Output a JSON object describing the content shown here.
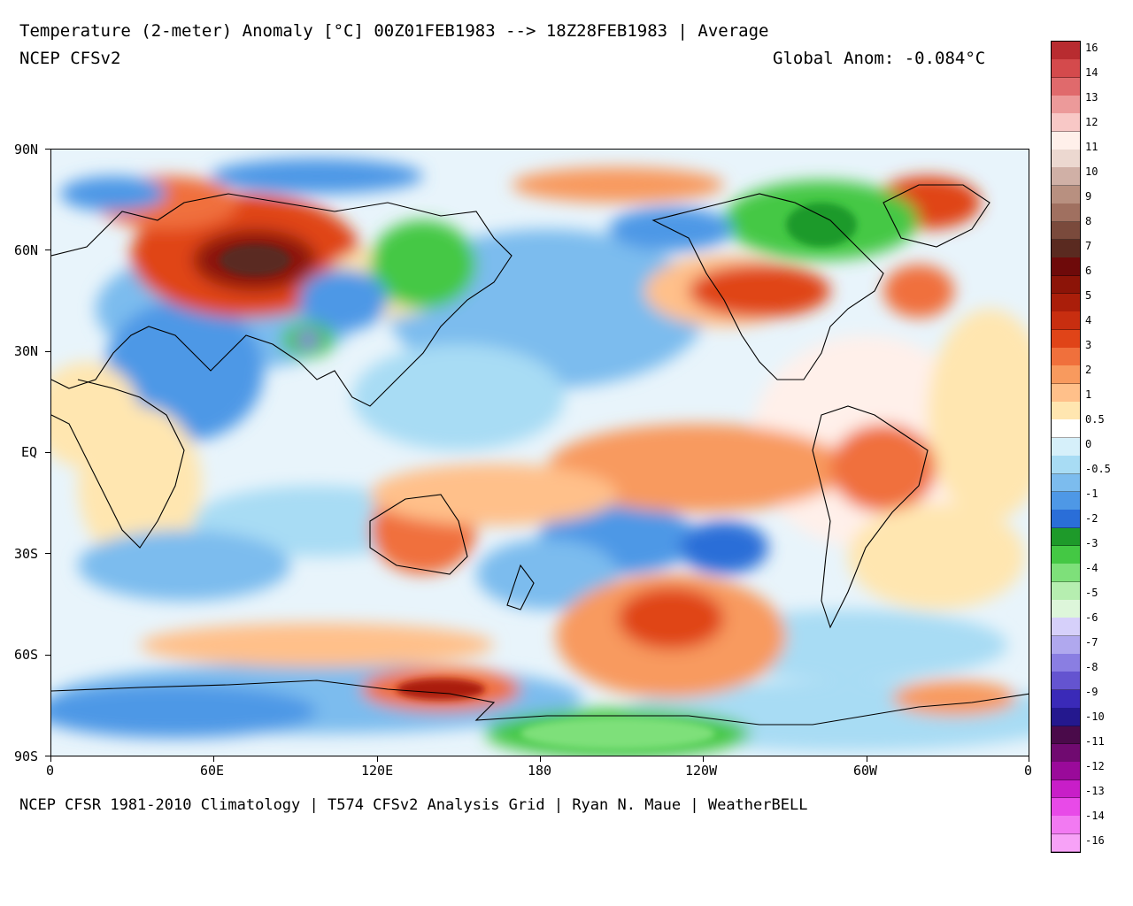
{
  "header": {
    "title": "Temperature (2-meter) Anomaly  [°C] 00Z01FEB1983 --> 18Z28FEB1983 | Average",
    "model": "NCEP CFSv2",
    "global_anom": "Global Anom: -0.084°C"
  },
  "footer": {
    "credit": "NCEP CFSR 1981-2010 Climatology | T574 CFSv2 Analysis Grid | Ryan N. Maue | WeatherBELL"
  },
  "map": {
    "lat_labels": [
      "90N",
      "60N",
      "30N",
      "EQ",
      "30S",
      "60S",
      "90S"
    ],
    "lon_labels": [
      "0",
      "60E",
      "120E",
      "180",
      "120W",
      "60W",
      "0"
    ]
  },
  "legend": {
    "labels": [
      "16",
      "14",
      "13",
      "12",
      "11",
      "10",
      "9",
      "8",
      "7",
      "6",
      "5",
      "4",
      "3",
      "2",
      "1",
      "0.5",
      "0",
      "-0.5",
      "-1",
      "-2",
      "-3",
      "-4",
      "-5",
      "-6",
      "-7",
      "-8",
      "-9",
      "-10",
      "-11",
      "-12",
      "-13",
      "-14",
      "-16"
    ],
    "colors": [
      "#b82c30",
      "#d44a4c",
      "#e06a6c",
      "#ec9a9a",
      "#f8c8c6",
      "#fff0ea",
      "#ecd8d0",
      "#d0b0a6",
      "#b89080",
      "#a07060",
      "#7a4a3c",
      "#5a2a20",
      "#6e0a0a",
      "#8c1408",
      "#aa1e0a",
      "#c82e10",
      "#e04418",
      "#f0703c",
      "#f89a5e",
      "#ffc08a",
      "#ffe6b0",
      "#ffffff",
      "#d6f0fa",
      "#a8dcf4",
      "#7cbcee",
      "#4e98e6",
      "#2a6ed8",
      "#1e9a2a",
      "#44c844",
      "#7ee07a",
      "#b6eeb0",
      "#ddf6da",
      "#d6d0fa",
      "#b0a8ee",
      "#8a7ee2",
      "#6454d0",
      "#3a2ab8",
      "#24188e",
      "#4a0a4a",
      "#700a70",
      "#9a0a9a",
      "#c81ec8",
      "#e84ae8",
      "#f27af2",
      "#f7a2f7"
    ]
  }
}
